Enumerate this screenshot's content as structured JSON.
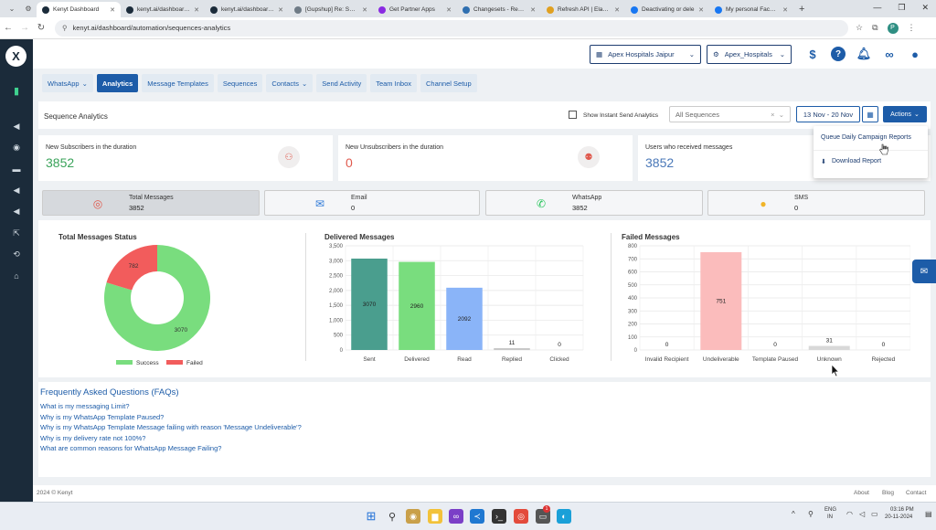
{
  "browser": {
    "tabs": [
      {
        "label": "Kenyt Dashboard",
        "active": true,
        "color": "#1b2b3a"
      },
      {
        "label": "kenyt.ai/dashboard/c",
        "active": false,
        "color": "#1b2b3a"
      },
      {
        "label": "kenyt.ai/dashboard/c",
        "active": false,
        "color": "#1b2b3a"
      },
      {
        "label": "[Gupshup] Re: Suppo",
        "active": false,
        "color": "#6f7b86"
      },
      {
        "label": "Get Partner Apps",
        "active": false,
        "color": "#8a2be2"
      },
      {
        "label": "Changesets - Repos",
        "active": false,
        "color": "#2f6fb0"
      },
      {
        "label": "Refresh API | Elastic",
        "active": false,
        "color": "#e0a020"
      },
      {
        "label": "Deactivating or dele",
        "active": false,
        "color": "#1877f2"
      },
      {
        "label": "My personal Facebo",
        "active": false,
        "color": "#1877f2"
      }
    ],
    "url": "kenyt.ai/dashboard/automation/sequences-analytics",
    "profile_initial": "P"
  },
  "header": {
    "logo": "X",
    "location_select": "Apex Hospitals Jaipur",
    "account_select": "Apex_Hospitals"
  },
  "nav": {
    "tabs": [
      {
        "label": "WhatsApp",
        "dropdown": true,
        "active": false
      },
      {
        "label": "Analytics",
        "dropdown": false,
        "active": true
      },
      {
        "label": "Message Templates",
        "dropdown": false,
        "active": false
      },
      {
        "label": "Sequences",
        "dropdown": false,
        "active": false
      },
      {
        "label": "Contacts",
        "dropdown": true,
        "active": false
      },
      {
        "label": "Send Activity",
        "dropdown": false,
        "active": false
      },
      {
        "label": "Team Inbox",
        "dropdown": false,
        "active": false
      },
      {
        "label": "Channel Setup",
        "dropdown": false,
        "active": false
      }
    ]
  },
  "page": {
    "title": "Sequence Analytics",
    "instant_checkbox_label": "Show Instant Send Analytics",
    "sequence_select_placeholder": "All Sequences",
    "date_range": "13 Nov - 20 Nov",
    "actions_label": "Actions"
  },
  "actions_menu": {
    "items": [
      "Queue Daily Campaign Reports",
      "Download Report"
    ]
  },
  "stats": [
    {
      "label": "New Subscribers in the duration",
      "value": "3852",
      "color": "#3aa35a"
    },
    {
      "label": "New Unsubscribers in the duration",
      "value": "0",
      "color": "#e05a4e"
    },
    {
      "label": "Users who received messages",
      "value": "3852",
      "color": "#4a78b8"
    }
  ],
  "totals": [
    {
      "label": "Total Messages",
      "value": "3852",
      "icon": "target-icon",
      "selected": true
    },
    {
      "label": "Email",
      "value": "0",
      "icon": "mail-icon",
      "selected": false
    },
    {
      "label": "WhatsApp",
      "value": "3852",
      "icon": "whatsapp-icon",
      "selected": false
    },
    {
      "label": "SMS",
      "value": "0",
      "icon": "sms-icon",
      "selected": false
    }
  ],
  "charts_text": {
    "status_title": "Total Messages Status",
    "delivered_title": "Delivered Messages",
    "failed_title": "Failed Messages"
  },
  "chart_data": [
    {
      "type": "pie",
      "title": "Total Messages Status",
      "categories": [
        "Success",
        "Failed"
      ],
      "values": [
        3070,
        782
      ],
      "colors": [
        "#79dd7e",
        "#f25c5c"
      ],
      "legend": "bottom"
    },
    {
      "type": "bar",
      "title": "Delivered Messages",
      "categories": [
        "Sent",
        "Delivered",
        "Read",
        "Replied",
        "Clicked"
      ],
      "values": [
        3070,
        2960,
        2092,
        11,
        0
      ],
      "colors": [
        "#4a9e8e",
        "#79dd7e",
        "#8ab4f8",
        "#c8c8c8",
        "#c8c8c8"
      ],
      "ylim": [
        0,
        3500
      ],
      "yticks": [
        "0",
        "500",
        "1,000",
        "1,500",
        "2,000",
        "2,500",
        "3,000",
        "3,500"
      ],
      "grid": true
    },
    {
      "type": "bar",
      "title": "Failed Messages",
      "categories": [
        "Invalid Recipient",
        "Undeliverable",
        "Template Paused",
        "Unknown",
        "Rejected"
      ],
      "values": [
        0,
        751,
        0,
        31,
        0
      ],
      "colors": [
        "#c8c8c8",
        "#fbbcbc",
        "#c8c8c8",
        "#d8d8d8",
        "#c8c8c8"
      ],
      "ylim": [
        0,
        800
      ],
      "yticks": [
        "0",
        "100",
        "200",
        "300",
        "400",
        "500",
        "600",
        "700",
        "800"
      ],
      "grid": true
    }
  ],
  "faq": {
    "title": "Frequently Asked Questions (FAQs)",
    "questions": [
      "What is my messaging Limit?",
      "Why is my WhatsApp Template Paused?",
      "Why is my WhatsApp Template Message failing with reason 'Message Undeliverable'?",
      "Why is my delivery rate not 100%?",
      "What are common reasons for WhatsApp Message Failing?"
    ]
  },
  "footer": {
    "copyright": "2024 © Kenyt",
    "links": [
      "About",
      "Blog",
      "Contact"
    ]
  },
  "taskbar": {
    "lang": "ENG",
    "region": "IN",
    "time": "03:16 PM",
    "date": "20-11-2024",
    "badge": "1"
  }
}
